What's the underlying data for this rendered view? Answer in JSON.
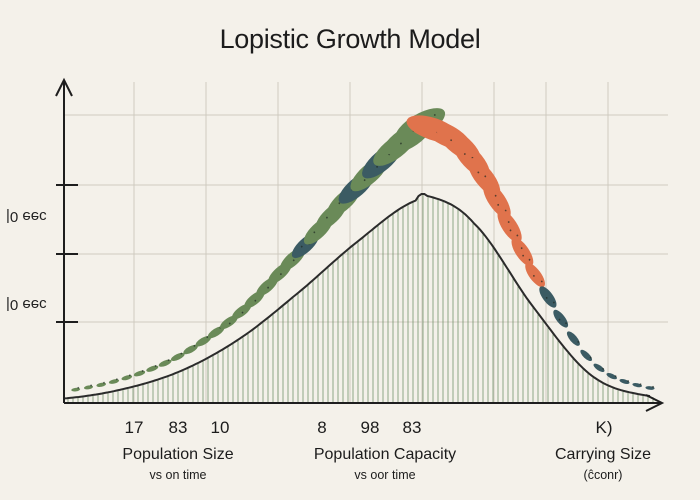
{
  "title": "Lopistic Growth Model",
  "y_axis": {
    "tick_labels": [
      "ɔɘɘ 0|",
      "ɔɘɘ 0|"
    ]
  },
  "x_axis": {
    "tick_labels": [
      "17",
      "83",
      "10",
      "8",
      "98",
      "83",
      "K)"
    ],
    "groups": [
      {
        "label": "Population Size",
        "sub": "vs on time"
      },
      {
        "label": "Population Capacity",
        "sub": "vs oor time"
      },
      {
        "label": "Carrying Size",
        "sub": "(ĉconr)"
      }
    ]
  },
  "colors": {
    "background": "#f4f1ea",
    "grid": "#cfcac0",
    "curve": "#2b2b2b",
    "fill_lines": "#6f8f67",
    "leaf_green": "#6a8a58",
    "leaf_dark": "#3b5b63",
    "leaf_orange": "#e0734c",
    "axis": "#1e1e1e"
  },
  "chart_data": {
    "type": "area",
    "title": "Lopistic Growth Model",
    "x": [
      0,
      0.1,
      0.2,
      0.3,
      0.4,
      0.5,
      0.6,
      0.62,
      0.7,
      0.8,
      0.9,
      1.0
    ],
    "y": [
      0.02,
      0.06,
      0.14,
      0.28,
      0.48,
      0.7,
      0.88,
      0.9,
      0.78,
      0.42,
      0.12,
      0.03
    ],
    "x_tick_labels": [
      "17",
      "83",
      "10",
      "8",
      "98",
      "83",
      "K)"
    ],
    "y_tick_labels": [
      "ɔɘɘ 0|",
      "ɔɘɘ 0|"
    ],
    "grid": true,
    "decorations": "leaf-shaped markers arc over the curve, colored green, dark teal and orange"
  }
}
